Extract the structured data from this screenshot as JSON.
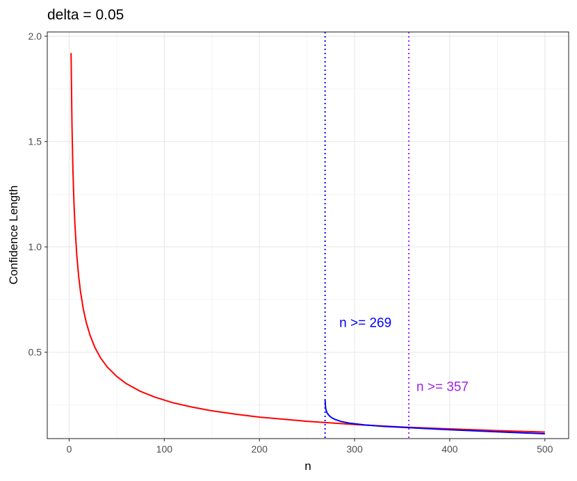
{
  "chart_data": {
    "type": "line",
    "title": "delta = 0.05",
    "xlabel": "n",
    "ylabel": "Confidence Length",
    "xlim": [
      -23,
      525
    ],
    "ylim": [
      0.09,
      2.02
    ],
    "x_ticks": [
      0,
      100,
      200,
      300,
      400,
      500
    ],
    "y_ticks": [
      0.5,
      1.0,
      1.5,
      2.0
    ],
    "x_tick_labels": [
      "0",
      "100",
      "200",
      "300",
      "400",
      "500"
    ],
    "y_tick_labels": [
      "0.5",
      "1.0",
      "1.5",
      "2.0"
    ],
    "grid": true,
    "series": [
      {
        "color": "#ff0000",
        "x": [
          2,
          3,
          4,
          5,
          6,
          8,
          10,
          12,
          15,
          18,
          22,
          27,
          33,
          40,
          50,
          60,
          75,
          90,
          110,
          130,
          150,
          175,
          200,
          250,
          300,
          350,
          400,
          450,
          500
        ],
        "y": [
          1.92,
          1.571,
          1.36,
          1.216,
          1.11,
          0.961,
          0.86,
          0.785,
          0.702,
          0.641,
          0.58,
          0.523,
          0.473,
          0.43,
          0.385,
          0.351,
          0.314,
          0.287,
          0.259,
          0.239,
          0.222,
          0.206,
          0.192,
          0.172,
          0.157,
          0.145,
          0.136,
          0.128,
          0.121
        ]
      },
      {
        "color": "#0000ff",
        "x": [
          269,
          269.5,
          270,
          271,
          273,
          276,
          280,
          286,
          295,
          310,
          330,
          357,
          400,
          450,
          500
        ],
        "y": [
          0.272,
          0.238,
          0.226,
          0.213,
          0.2,
          0.189,
          0.18,
          0.171,
          0.163,
          0.155,
          0.148,
          0.142,
          0.132,
          0.122,
          0.113
        ]
      }
    ],
    "vlines": [
      {
        "x": 269,
        "color": "#0000ff",
        "style": "dotted"
      },
      {
        "x": 357,
        "color": "#a020f0",
        "style": "dotted"
      }
    ],
    "annotations": [
      {
        "text": "n >= 269",
        "x": 284,
        "y": 0.64,
        "color": "#0000ff"
      },
      {
        "text": "n >= 357",
        "x": 365,
        "y": 0.335,
        "color": "#a020f0"
      }
    ]
  }
}
